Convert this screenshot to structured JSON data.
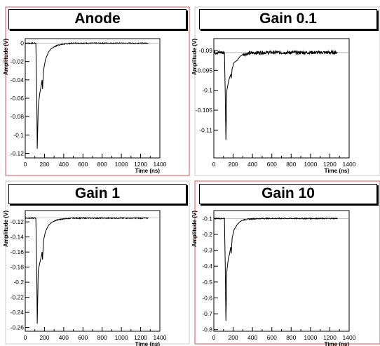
{
  "chart_data": [
    {
      "type": "line",
      "title": "Anode",
      "xlabel": "Time (ns)",
      "ylabel": "Amplitude (V)",
      "xlim": [
        0,
        1400
      ],
      "ylim": [
        -0.125,
        0.005
      ],
      "xticks": [
        "0",
        "200",
        "400",
        "600",
        "800",
        "1000",
        "1200",
        "1400"
      ],
      "yticks": [
        "0",
        "-0.02",
        "-0.04",
        "-0.06",
        "-0.08",
        "-0.1",
        "-0.12"
      ],
      "ytick_values": [
        0,
        -0.02,
        -0.04,
        -0.06,
        -0.08,
        -0.1,
        -0.12
      ],
      "series": [
        {
          "x": [
            0,
            110,
            118,
            125,
            135,
            150,
            160,
            175,
            180,
            190,
            210,
            240,
            270,
            300,
            340,
            400,
            500,
            700,
            1000,
            1280
          ],
          "y": [
            0,
            0,
            -0.045,
            -0.115,
            -0.07,
            -0.055,
            -0.05,
            -0.04,
            -0.05,
            -0.03,
            -0.018,
            -0.01,
            -0.006,
            -0.004,
            -0.002,
            -0.001,
            0,
            0,
            0,
            0
          ]
        }
      ],
      "baseline": 0
    },
    {
      "type": "line",
      "title": "Gain 0.1",
      "xlabel": "Time (ns)",
      "ylabel": "Amplitude (V)",
      "xlim": [
        0,
        1400
      ],
      "ylim": [
        -0.117,
        -0.087
      ],
      "xticks": [
        "0",
        "200",
        "400",
        "600",
        "800",
        "1000",
        "1200",
        "1400"
      ],
      "yticks": [
        "-0.09",
        "-0.095",
        "-0.1",
        "-0.105",
        "-0.11"
      ],
      "ytick_values": [
        -0.09,
        -0.095,
        -0.1,
        -0.105,
        -0.11
      ],
      "series": [
        {
          "x": [
            0,
            110,
            118,
            125,
            135,
            150,
            160,
            175,
            180,
            190,
            210,
            240,
            270,
            300,
            340,
            400,
            500,
            700,
            1000,
            1280
          ],
          "y": [
            -0.0905,
            -0.0905,
            -0.101,
            -0.1125,
            -0.1,
            -0.098,
            -0.097,
            -0.096,
            -0.097,
            -0.0945,
            -0.093,
            -0.0925,
            -0.0915,
            -0.091,
            -0.0908,
            -0.0906,
            -0.0905,
            -0.0905,
            -0.0905,
            -0.0905
          ]
        }
      ],
      "baseline": -0.0905
    },
    {
      "type": "line",
      "title": "Gain 1",
      "xlabel": "Time (ns)",
      "ylabel": "Amplitude (V)",
      "xlim": [
        0,
        1400
      ],
      "ylim": [
        -0.265,
        -0.105
      ],
      "xticks": [
        "0",
        "200",
        "400",
        "600",
        "800",
        "1000",
        "1200",
        "1400"
      ],
      "yticks": [
        "-0.12",
        "-0.14",
        "-0.16",
        "-0.18",
        "-0.2",
        "-0.22",
        "-0.24",
        "-0.26"
      ],
      "ytick_values": [
        -0.12,
        -0.14,
        -0.16,
        -0.18,
        -0.2,
        -0.22,
        -0.24,
        -0.26
      ],
      "series": [
        {
          "x": [
            0,
            110,
            118,
            125,
            135,
            150,
            160,
            175,
            180,
            190,
            210,
            240,
            270,
            300,
            340,
            400,
            500,
            700,
            1000,
            1280
          ],
          "y": [
            -0.115,
            -0.115,
            -0.17,
            -0.255,
            -0.185,
            -0.175,
            -0.17,
            -0.16,
            -0.17,
            -0.145,
            -0.133,
            -0.125,
            -0.121,
            -0.119,
            -0.117,
            -0.116,
            -0.115,
            -0.115,
            -0.115,
            -0.115
          ]
        }
      ],
      "baseline": -0.115
    },
    {
      "type": "line",
      "title": "Gain 10",
      "xlabel": "Time (ns)",
      "ylabel": "Amplitude (V)",
      "xlim": [
        0,
        1400
      ],
      "ylim": [
        -0.81,
        -0.05
      ],
      "xticks": [
        "0",
        "200",
        "400",
        "600",
        "800",
        "1000",
        "1200",
        "1400"
      ],
      "yticks": [
        "-0.1",
        "-0.2",
        "-0.3",
        "-0.4",
        "-0.5",
        "-0.6",
        "-0.7",
        "-0.8"
      ],
      "ytick_values": [
        -0.1,
        -0.2,
        -0.3,
        -0.4,
        -0.5,
        -0.6,
        -0.7,
        -0.8
      ],
      "series": [
        {
          "x": [
            0,
            110,
            118,
            125,
            135,
            150,
            160,
            175,
            180,
            190,
            210,
            240,
            270,
            300,
            340,
            400,
            500,
            700,
            1000,
            1280
          ],
          "y": [
            -0.1,
            -0.1,
            -0.4,
            -0.745,
            -0.43,
            -0.35,
            -0.33,
            -0.28,
            -0.32,
            -0.22,
            -0.17,
            -0.14,
            -0.12,
            -0.11,
            -0.105,
            -0.102,
            -0.1,
            -0.1,
            -0.1,
            -0.1
          ]
        }
      ],
      "baseline": -0.1
    }
  ]
}
